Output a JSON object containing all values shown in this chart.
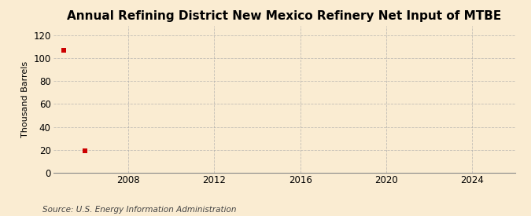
{
  "title": "Annual Refining District New Mexico Refinery Net Input of MTBE",
  "ylabel": "Thousand Barrels",
  "source": "Source: U.S. Energy Information Administration",
  "data_x": [
    2005,
    2006
  ],
  "data_y": [
    107,
    19
  ],
  "marker_color": "#cc0000",
  "marker_size": 4,
  "xlim": [
    2004.5,
    2026
  ],
  "ylim": [
    0,
    128
  ],
  "yticks": [
    0,
    20,
    40,
    60,
    80,
    100,
    120
  ],
  "xticks": [
    2008,
    2012,
    2016,
    2020,
    2024
  ],
  "bg_color": "#faecd2",
  "grid_color": "#aaaaaa",
  "title_fontsize": 11,
  "label_fontsize": 8,
  "tick_fontsize": 8.5,
  "source_fontsize": 7.5
}
